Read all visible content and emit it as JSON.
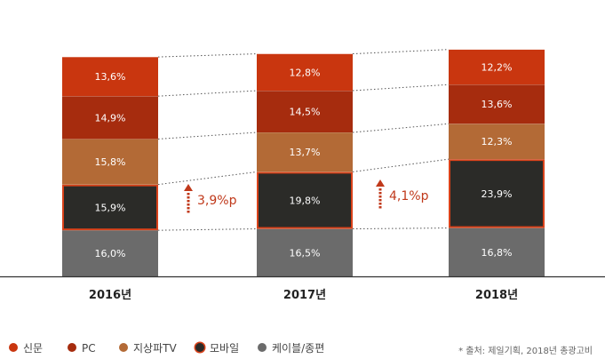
{
  "chart_data": {
    "type": "bar",
    "stacked": true,
    "categories": [
      "2016년",
      "2017년",
      "2018년"
    ],
    "series": [
      {
        "name": "케이블/종편",
        "values": [
          16.0,
          16.5,
          16.8
        ],
        "labels": [
          "16,0%",
          "16,5%",
          "16,8%"
        ],
        "color": "#6b6b6b"
      },
      {
        "name": "모바일",
        "values": [
          15.9,
          19.8,
          23.9
        ],
        "labels": [
          "15,9%",
          "19,8%",
          "23,9%"
        ],
        "color": "#2b2b28",
        "outline": "#d9421a"
      },
      {
        "name": "지상파TV",
        "values": [
          15.8,
          13.7,
          12.3
        ],
        "labels": [
          "15,8%",
          "13,7%",
          "12,3%"
        ],
        "color": "#b36a36"
      },
      {
        "name": "PC",
        "values": [
          14.9,
          14.5,
          13.6
        ],
        "labels": [
          "14,9%",
          "14,5%",
          "13,6%"
        ],
        "color": "#a62c0e"
      },
      {
        "name": "신문",
        "values": [
          13.6,
          12.8,
          12.2
        ],
        "labels": [
          "13,6%",
          "12,8%",
          "12,2%"
        ],
        "color": "#c9360f"
      }
    ],
    "annotations": [
      {
        "text": "3,9%p",
        "between": [
          0,
          1
        ],
        "color": "#c0391b"
      },
      {
        "text": "4,1%p",
        "between": [
          1,
          2
        ],
        "color": "#c0391b"
      }
    ],
    "legend": {
      "placement": "bottom-left",
      "order": [
        "신문",
        "PC",
        "지상파TV",
        "모바일",
        "케이블/종편"
      ]
    },
    "source": "* 출처: 제일기획, 2018년 총광고비",
    "grid": false
  }
}
